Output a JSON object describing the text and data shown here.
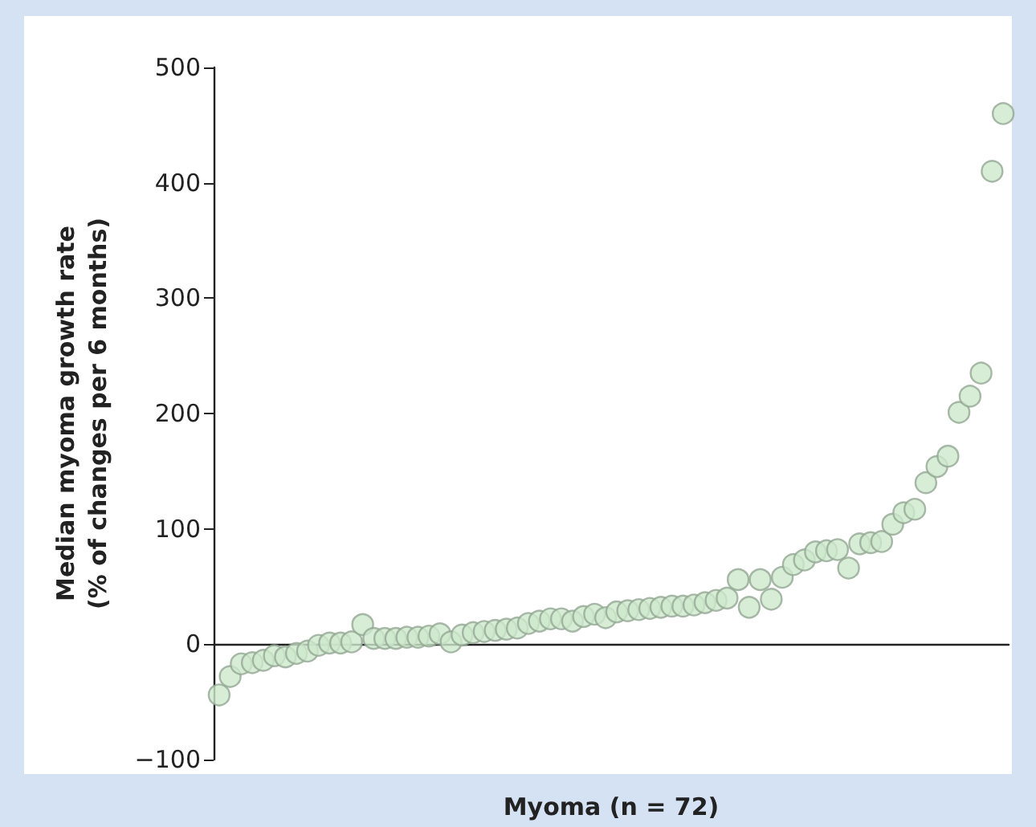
{
  "chart_data": {
    "type": "scatter",
    "xlabel": "Myoma (n = 72)",
    "ylabel": "Median myoma growth rate\n(% of changes per 6 months)",
    "categories": [
      null,
      null,
      null,
      null,
      null,
      null,
      null,
      null,
      null,
      null,
      null,
      null,
      null,
      null,
      null,
      null,
      null,
      null,
      null,
      null,
      null,
      null,
      null,
      null,
      null,
      null,
      null,
      null,
      null,
      null,
      null,
      null,
      null,
      null,
      null,
      null,
      null,
      null,
      null,
      null,
      null,
      null,
      null,
      null,
      null,
      null,
      null,
      null,
      null,
      null,
      null,
      null,
      null,
      null,
      null,
      null,
      null,
      null,
      null,
      null,
      null,
      null,
      null,
      null,
      null,
      null,
      null,
      null,
      null,
      null,
      null,
      null
    ],
    "series": [
      {
        "color": "#cde8cc",
        "values": [
          -44,
          -28,
          -17,
          -16,
          -14,
          -10,
          -11,
          -8,
          -6,
          -1,
          1,
          1,
          2,
          17,
          5,
          5,
          5,
          6,
          6,
          7,
          9,
          2,
          8,
          10,
          11,
          12,
          13,
          14,
          18,
          20,
          22,
          22,
          20,
          24,
          26,
          23,
          28,
          29,
          30,
          31,
          32,
          33,
          33,
          34,
          36,
          38,
          40,
          56,
          32,
          56,
          39,
          58,
          69,
          73,
          80,
          81,
          82,
          66,
          87,
          88,
          89,
          104,
          114,
          117,
          140,
          154,
          163,
          201,
          215,
          235,
          410,
          460
        ]
      }
    ],
    "ylim": [
      -100,
      500
    ],
    "yticks": [
      -100,
      0,
      100,
      200,
      300,
      400,
      500
    ],
    "marker": "circle"
  }
}
